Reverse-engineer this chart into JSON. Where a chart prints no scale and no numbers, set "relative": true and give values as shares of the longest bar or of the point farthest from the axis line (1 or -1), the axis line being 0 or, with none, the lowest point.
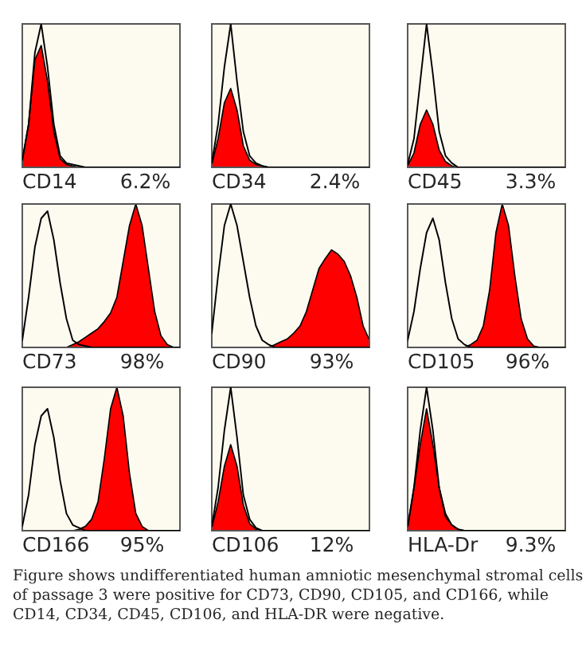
{
  "chart_data": [
    {
      "type": "area",
      "relative": true,
      "categories": [
        null,
        null,
        null,
        null,
        null,
        null,
        null,
        null,
        null,
        null,
        null,
        null,
        null,
        null,
        null,
        null,
        null,
        null,
        null,
        null,
        null,
        null,
        null,
        null,
        null,
        null
      ],
      "annotations": [
        "CD14",
        "6.2%"
      ],
      "series": [
        {
          "color": "#ff0000",
          "values": [
            0.05,
            0.3,
            0.75,
            0.85,
            0.6,
            0.25,
            0.06,
            0.02,
            0.01,
            0,
            0,
            0,
            0,
            0,
            0,
            0,
            0,
            0,
            0,
            0,
            0,
            0,
            0,
            0,
            0,
            0
          ]
        },
        {
          "type": "line",
          "color": "#000000",
          "values": [
            0.05,
            0.3,
            0.8,
            1.0,
            0.7,
            0.3,
            0.08,
            0.03,
            0.02,
            0.01,
            0,
            0,
            0,
            0,
            0,
            0,
            0,
            0,
            0,
            0,
            0,
            0,
            0,
            0,
            0,
            0
          ]
        }
      ]
    },
    {
      "type": "area",
      "relative": true,
      "categories": [
        null,
        null,
        null,
        null,
        null,
        null,
        null,
        null,
        null,
        null,
        null,
        null,
        null,
        null,
        null,
        null,
        null,
        null,
        null,
        null,
        null,
        null,
        null,
        null,
        null,
        null
      ],
      "annotations": [
        "CD34",
        "2.4%"
      ],
      "series": [
        {
          "color": "#ff0000",
          "values": [
            0.02,
            0.2,
            0.45,
            0.55,
            0.4,
            0.15,
            0.05,
            0.02,
            0.01,
            0,
            0,
            0,
            0,
            0,
            0,
            0,
            0,
            0,
            0,
            0,
            0,
            0,
            0,
            0,
            0,
            0
          ]
        },
        {
          "type": "line",
          "color": "#000000",
          "values": [
            0.03,
            0.3,
            0.7,
            1.0,
            0.6,
            0.25,
            0.08,
            0.03,
            0.01,
            0,
            0,
            0,
            0,
            0,
            0,
            0,
            0,
            0,
            0,
            0,
            0,
            0,
            0,
            0,
            0,
            0
          ]
        }
      ]
    },
    {
      "type": "area",
      "relative": true,
      "categories": [
        null,
        null,
        null,
        null,
        null,
        null,
        null,
        null,
        null,
        null,
        null,
        null,
        null,
        null,
        null,
        null,
        null,
        null,
        null,
        null,
        null,
        null,
        null,
        null,
        null,
        null
      ],
      "annotations": [
        "CD45",
        "3.3%"
      ],
      "series": [
        {
          "color": "#ff0000",
          "values": [
            0.01,
            0.1,
            0.3,
            0.4,
            0.3,
            0.12,
            0.04,
            0.01,
            0,
            0,
            0,
            0,
            0,
            0,
            0,
            0,
            0,
            0,
            0,
            0,
            0,
            0,
            0,
            0,
            0,
            0
          ]
        },
        {
          "type": "line",
          "color": "#000000",
          "values": [
            0.02,
            0.2,
            0.6,
            1.0,
            0.65,
            0.25,
            0.08,
            0.03,
            0,
            0,
            0,
            0,
            0,
            0,
            0,
            0,
            0,
            0,
            0,
            0,
            0,
            0,
            0,
            0,
            0,
            0
          ]
        }
      ]
    },
    {
      "type": "area",
      "relative": true,
      "categories": [
        null,
        null,
        null,
        null,
        null,
        null,
        null,
        null,
        null,
        null,
        null,
        null,
        null,
        null,
        null,
        null,
        null,
        null,
        null,
        null,
        null,
        null,
        null,
        null,
        null,
        null
      ],
      "annotations": [
        "CD73",
        "98%"
      ],
      "series": [
        {
          "color": "#ff0000",
          "values": [
            0,
            0,
            0,
            0,
            0,
            0,
            0,
            0,
            0.02,
            0.04,
            0.07,
            0.1,
            0.13,
            0.18,
            0.24,
            0.35,
            0.6,
            0.85,
            1.0,
            0.85,
            0.55,
            0.25,
            0.08,
            0.02,
            0,
            0
          ]
        },
        {
          "type": "line",
          "color": "#000000",
          "values": [
            0.05,
            0.35,
            0.7,
            0.9,
            0.95,
            0.75,
            0.45,
            0.2,
            0.05,
            0.02,
            0.01,
            0,
            0,
            0,
            0,
            0,
            0,
            0,
            0,
            0,
            0,
            0,
            0,
            0,
            0,
            0
          ]
        }
      ]
    },
    {
      "type": "area",
      "relative": true,
      "categories": [
        null,
        null,
        null,
        null,
        null,
        null,
        null,
        null,
        null,
        null,
        null,
        null,
        null,
        null,
        null,
        null,
        null,
        null,
        null,
        null,
        null,
        null,
        null,
        null,
        null,
        null
      ],
      "annotations": [
        "CD90",
        "93%"
      ],
      "series": [
        {
          "color": "#ff0000",
          "values": [
            0,
            0,
            0,
            0,
            0,
            0,
            0,
            0,
            0,
            0,
            0.02,
            0.04,
            0.06,
            0.1,
            0.15,
            0.25,
            0.4,
            0.55,
            0.62,
            0.68,
            0.65,
            0.6,
            0.5,
            0.35,
            0.15,
            0.05
          ]
        },
        {
          "type": "line",
          "color": "#000000",
          "values": [
            0.1,
            0.5,
            0.85,
            1.0,
            0.85,
            0.6,
            0.35,
            0.15,
            0.05,
            0.02,
            0,
            0,
            0,
            0,
            0,
            0,
            0,
            0,
            0,
            0,
            0,
            0,
            0,
            0,
            0,
            0
          ]
        }
      ]
    },
    {
      "type": "area",
      "relative": true,
      "categories": [
        null,
        null,
        null,
        null,
        null,
        null,
        null,
        null,
        null,
        null,
        null,
        null,
        null,
        null,
        null,
        null,
        null,
        null,
        null,
        null,
        null,
        null,
        null,
        null,
        null,
        null
      ],
      "annotations": [
        "CD105",
        "96%"
      ],
      "series": [
        {
          "color": "#ff0000",
          "values": [
            0,
            0,
            0,
            0,
            0,
            0,
            0,
            0,
            0,
            0,
            0.02,
            0.05,
            0.15,
            0.4,
            0.8,
            1.0,
            0.85,
            0.5,
            0.2,
            0.06,
            0.01,
            0,
            0,
            0,
            0,
            0
          ]
        },
        {
          "type": "line",
          "color": "#000000",
          "values": [
            0.05,
            0.25,
            0.55,
            0.8,
            0.9,
            0.75,
            0.45,
            0.2,
            0.06,
            0.02,
            0,
            0,
            0,
            0,
            0,
            0,
            0,
            0,
            0,
            0,
            0,
            0,
            0,
            0,
            0,
            0
          ]
        }
      ]
    },
    {
      "type": "area",
      "relative": true,
      "categories": [
        null,
        null,
        null,
        null,
        null,
        null,
        null,
        null,
        null,
        null,
        null,
        null,
        null,
        null,
        null,
        null,
        null,
        null,
        null,
        null,
        null,
        null,
        null,
        null,
        null,
        null
      ],
      "annotations": [
        "CD166",
        "95%"
      ],
      "series": [
        {
          "color": "#ff0000",
          "values": [
            0,
            0,
            0,
            0,
            0,
            0,
            0,
            0,
            0,
            0.01,
            0.03,
            0.08,
            0.2,
            0.5,
            0.85,
            1.0,
            0.8,
            0.4,
            0.12,
            0.03,
            0,
            0,
            0,
            0,
            0,
            0
          ]
        },
        {
          "type": "line",
          "color": "#000000",
          "values": [
            0.03,
            0.25,
            0.6,
            0.8,
            0.85,
            0.65,
            0.35,
            0.12,
            0.04,
            0.02,
            0,
            0,
            0,
            0,
            0,
            0,
            0,
            0,
            0,
            0,
            0,
            0,
            0,
            0,
            0,
            0
          ]
        }
      ]
    },
    {
      "type": "area",
      "relative": true,
      "categories": [
        null,
        null,
        null,
        null,
        null,
        null,
        null,
        null,
        null,
        null,
        null,
        null,
        null,
        null,
        null,
        null,
        null,
        null,
        null,
        null,
        null,
        null,
        null,
        null,
        null,
        null
      ],
      "annotations": [
        "CD106",
        "12%"
      ],
      "series": [
        {
          "color": "#ff0000",
          "values": [
            0.02,
            0.2,
            0.45,
            0.6,
            0.45,
            0.18,
            0.05,
            0.01,
            0,
            0,
            0,
            0,
            0,
            0,
            0,
            0,
            0,
            0,
            0,
            0,
            0,
            0,
            0,
            0,
            0,
            0
          ]
        },
        {
          "type": "line",
          "color": "#000000",
          "values": [
            0.03,
            0.3,
            0.7,
            1.0,
            0.65,
            0.25,
            0.08,
            0.02,
            0,
            0,
            0,
            0,
            0,
            0,
            0,
            0,
            0,
            0,
            0,
            0,
            0,
            0,
            0,
            0,
            0,
            0
          ]
        }
      ]
    },
    {
      "type": "area",
      "relative": true,
      "categories": [
        null,
        null,
        null,
        null,
        null,
        null,
        null,
        null,
        null,
        null,
        null,
        null,
        null,
        null,
        null,
        null,
        null,
        null,
        null,
        null,
        null,
        null,
        null,
        null,
        null,
        null
      ],
      "annotations": [
        "HLA-Dr",
        "9.3%",
        "Figure shows undifferentiated human amniotic mesenchymal stromal cells of passage 3 were positive for CD73, CD90, CD105, and CD166, while CD14, CD34, CD45, CD106, and HLA-DR were negative."
      ],
      "series": [
        {
          "color": "#ff0000",
          "values": [
            0.02,
            0.3,
            0.6,
            0.85,
            0.6,
            0.3,
            0.12,
            0.04,
            0.01,
            0,
            0,
            0,
            0,
            0,
            0,
            0,
            0,
            0,
            0,
            0,
            0,
            0,
            0,
            0,
            0,
            0
          ]
        },
        {
          "type": "line",
          "color": "#000000",
          "values": [
            0.03,
            0.3,
            0.7,
            1.0,
            0.7,
            0.3,
            0.1,
            0.04,
            0.01,
            0,
            0,
            0,
            0,
            0,
            0,
            0,
            0,
            0,
            0,
            0,
            0,
            0,
            0,
            0,
            0,
            0
          ]
        }
      ]
    }
  ]
}
